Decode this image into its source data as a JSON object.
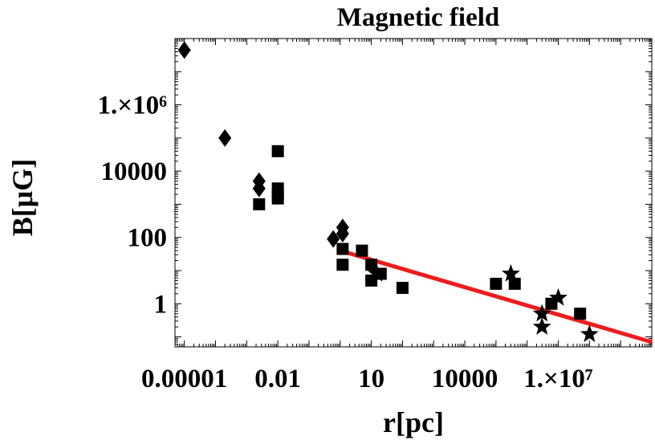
{
  "chart_data": {
    "type": "scatter",
    "title": "Magnetic field",
    "xlabel": "r[pc]",
    "ylabel": "B[μG]",
    "x_scale": "log",
    "y_scale": "log",
    "xlim": [
      5e-06,
      10000000000.0
    ],
    "ylim": [
      0.05,
      100000000.0
    ],
    "grid": false,
    "x_ticks": [
      {
        "value": 1e-05,
        "label": "0.00001"
      },
      {
        "value": 0.01,
        "label": "0.01"
      },
      {
        "value": 10,
        "label": "10"
      },
      {
        "value": 10000,
        "label": "10000"
      },
      {
        "value": 10000000.0,
        "label": "1.×10⁷"
      }
    ],
    "y_ticks": [
      {
        "value": 1,
        "label": "1"
      },
      {
        "value": 100,
        "label": "100"
      },
      {
        "value": 10000,
        "label": "10000"
      },
      {
        "value": 1000000.0,
        "label": "1.×10⁶"
      }
    ],
    "series": [
      {
        "marker": "diamond",
        "points": [
          [
            1e-05,
            45000000.0
          ],
          [
            0.0002,
            100000.0
          ],
          [
            0.0025,
            5000
          ],
          [
            0.0025,
            3000
          ],
          [
            0.6,
            90
          ],
          [
            1.2,
            200
          ],
          [
            1.2,
            130
          ]
        ]
      },
      {
        "marker": "square",
        "points": [
          [
            0.0025,
            1000
          ],
          [
            0.01,
            40000
          ],
          [
            0.01,
            3000
          ],
          [
            0.01,
            2000
          ],
          [
            0.01,
            1500
          ],
          [
            1.2,
            45
          ],
          [
            1.2,
            15
          ],
          [
            5,
            40
          ],
          [
            10,
            15
          ],
          [
            10,
            5
          ],
          [
            20,
            8
          ],
          [
            100,
            3
          ],
          [
            100000.0,
            4
          ],
          [
            400000.0,
            4
          ],
          [
            6000000.0,
            1
          ],
          [
            50000000.0,
            0.5
          ]
        ]
      },
      {
        "marker": "star",
        "points": [
          [
            300000.0,
            8
          ],
          [
            3000000.0,
            0.5
          ],
          [
            3000000.0,
            0.2
          ],
          [
            10000000.0,
            1.5
          ],
          [
            100000000.0,
            0.12
          ],
          [
            15,
            8
          ]
        ]
      }
    ],
    "lines": [
      {
        "color": "#ee1c1c",
        "x": [
          1,
          10000000000.0
        ],
        "y": [
          40,
          0.07
        ]
      }
    ]
  }
}
